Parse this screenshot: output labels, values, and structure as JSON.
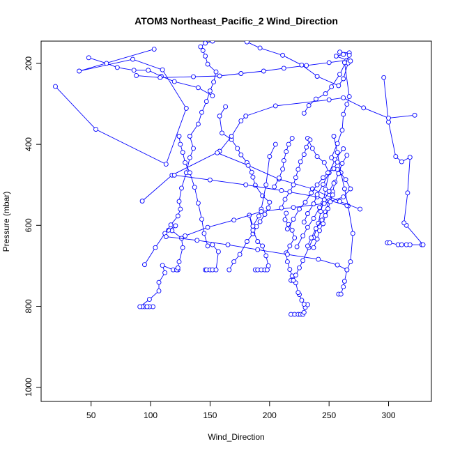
{
  "chart_data": {
    "type": "line",
    "title": "ATOM3 Northeast_Pacific_2 Wind_Direction",
    "xlabel": "Wind_Direction",
    "ylabel": "Pressure (mbar)",
    "xlim": [
      8,
      336
    ],
    "ylim": [
      1035,
      145
    ],
    "y_reversed": true,
    "x_ticks": [
      50,
      100,
      150,
      200,
      250,
      300
    ],
    "y_ticks": [
      200,
      400,
      600,
      800,
      1000
    ],
    "grid": false,
    "legend": "none",
    "marker": "open-circle",
    "color": "#0000ff",
    "series": [
      {
        "x": [
          102,
          95,
          99,
          97,
          93,
          91,
          99,
          107,
          107,
          112,
          110,
          119,
          122,
          123,
          122,
          123,
          124,
          127,
          126,
          118,
          121,
          115
        ],
        "y": [
          801,
          801,
          801,
          801,
          801,
          801,
          783,
          762,
          741,
          717,
          699,
          710,
          710,
          710,
          710,
          705,
          690,
          655,
          632,
          613,
          601,
          612
        ]
      },
      {
        "x": [
          95,
          104,
          112,
          117,
          123,
          125,
          124,
          126,
          130,
          133,
          136,
          133,
          140,
          143,
          147,
          150,
          153,
          155,
          148,
          146,
          144,
          142,
          146,
          152
        ],
        "y": [
          697,
          655,
          620,
          599,
          577,
          560,
          541,
          508,
          470,
          433,
          410,
          380,
          350,
          321,
          294,
          268,
          246,
          221,
          202,
          182,
          168,
          159,
          150,
          145
        ]
      },
      {
        "x": [
          146,
          147,
          150,
          152,
          155,
          157,
          152,
          148,
          145,
          143,
          140,
          137,
          133,
          129,
          127,
          125,
          124
        ],
        "y": [
          710,
          710,
          710,
          710,
          710,
          665,
          648,
          651,
          620,
          585,
          545,
          506,
          470,
          445,
          420,
          400,
          380
        ]
      },
      {
        "x": [
          166,
          170,
          175,
          181,
          186,
          189,
          192,
          196,
          199,
          200,
          194,
          188,
          186,
          185,
          181,
          176,
          173,
          168,
          160,
          158,
          163
        ],
        "y": [
          710,
          690,
          672,
          640,
          621,
          603,
          591,
          573,
          557,
          543,
          527,
          501,
          481,
          469,
          445,
          426,
          410,
          388,
          372,
          330,
          307
        ]
      },
      {
        "x": [
          188,
          190,
          193,
          196,
          198,
          199,
          197,
          194,
          190,
          186,
          183,
          186,
          191,
          193,
          197,
          200,
          205
        ],
        "y": [
          710,
          710,
          710,
          710,
          710,
          700,
          675,
          651,
          640,
          612,
          575,
          602,
          577,
          560,
          500,
          430,
          400
        ]
      },
      {
        "x": [
          218,
          221,
          224,
          226,
          228,
          229,
          230,
          232,
          229,
          227,
          225,
          224,
          222,
          219,
          217,
          215,
          214,
          217,
          221,
          219,
          216,
          213,
          214
        ],
        "y": [
          820,
          820,
          820,
          820,
          820,
          815,
          803,
          796,
          795,
          785,
          771,
          766,
          742,
          725,
          709,
          690,
          668,
          651,
          631,
          612,
          598,
          586,
          570
        ]
      },
      {
        "x": [
          218,
          220,
          222,
          225,
          228,
          233,
          237,
          241,
          243,
          245,
          247,
          250,
          246,
          240,
          236,
          232
        ],
        "y": [
          736,
          736,
          723,
          705,
          687,
          655,
          630,
          595,
          566,
          545,
          511,
          470,
          445,
          430,
          410,
          385
        ]
      },
      {
        "x": [
          258,
          260,
          262,
          263,
          265,
          268,
          270,
          266,
          263,
          260,
          257,
          254
        ],
        "y": [
          770,
          770,
          752,
          738,
          710,
          690,
          620,
          552,
          510,
          470,
          420,
          380
        ]
      },
      {
        "x": [
          299,
          301,
          308,
          311,
          315,
          318,
          328,
          329,
          315,
          313,
          316,
          318,
          311,
          306,
          300,
          296
        ],
        "y": [
          643,
          643,
          648,
          648,
          648,
          648,
          648,
          648,
          600,
          594,
          520,
          432,
          443,
          430,
          345,
          235
        ]
      },
      {
        "x": [
          20,
          54,
          113,
          130,
          110,
          85,
          40,
          103
        ],
        "y": [
          257,
          363,
          449,
          311,
          216,
          190,
          219,
          165
        ]
      },
      {
        "x": [
          48,
          63,
          72,
          86,
          98,
          109,
          120,
          140,
          152
        ],
        "y": [
          186,
          200,
          210,
          217,
          217,
          232,
          245,
          260,
          280
        ]
      },
      {
        "x": [
          93,
          118,
          158,
          168,
          176,
          180,
          205,
          250,
          262,
          279,
          300,
          322
        ],
        "y": [
          540,
          476,
          417,
          380,
          342,
          330,
          305,
          290,
          285,
          310,
          335,
          328
        ]
      },
      {
        "x": [
          113,
          139,
          165,
          190,
          215,
          241,
          257,
          265
        ],
        "y": [
          628,
          637,
          648,
          660,
          672,
          684,
          698,
          710
        ]
      },
      {
        "x": [
          120,
          150,
          180,
          210,
          240,
          265
        ],
        "y": [
          476,
          488,
          500,
          514,
          530,
          551
        ]
      },
      {
        "x": [
          156,
          182,
          208,
          236,
          259,
          276
        ],
        "y": [
          421,
          452,
          486,
          510,
          541,
          560
        ]
      },
      {
        "x": [
          129,
          148,
          170,
          193,
          220,
          246,
          262,
          268,
          264,
          257
        ],
        "y": [
          626,
          605,
          587,
          566,
          556,
          546,
          530,
          510,
          487,
          462
        ]
      },
      {
        "x": [
          88,
          108,
          136,
          158,
          176,
          195,
          212,
          231,
          250,
          265,
          256,
          262,
          267,
          259
        ],
        "y": [
          230,
          235,
          233,
          231,
          225,
          219,
          212,
          205,
          198,
          192,
          182,
          178,
          174,
          172
        ]
      },
      {
        "x": [
          181,
          192,
          211,
          227,
          240,
          258,
          262,
          266,
          268
        ],
        "y": [
          147,
          162,
          180,
          204,
          232,
          255,
          238,
          199,
          194
        ]
      },
      {
        "x": [
          229,
          233,
          239,
          247,
          252,
          259,
          267
        ],
        "y": [
          323,
          304,
          288,
          275,
          258,
          227,
          180
        ]
      },
      {
        "x": [
          252,
          257,
          261,
          262,
          265,
          267,
          263
        ],
        "y": [
          433,
          398,
          365,
          326,
          301,
          282,
          198
        ]
      },
      {
        "x": [
          229,
          232,
          237,
          240,
          245,
          250,
          255,
          262
        ],
        "y": [
          592,
          571,
          547,
          524,
          499,
          470,
          438,
          411
        ]
      },
      {
        "x": [
          204,
          208,
          211,
          212,
          214,
          216,
          219
        ],
        "y": [
          505,
          483,
          461,
          440,
          418,
          400,
          385
        ]
      },
      {
        "x": [
          232,
          235,
          239,
          244,
          247,
          250,
          253,
          255,
          258,
          261,
          265
        ],
        "y": [
          651,
          631,
          608,
          587,
          567,
          539,
          517,
          493,
          472,
          447,
          427
        ]
      },
      {
        "x": [
          215,
          220,
          225,
          230,
          235,
          240,
          245,
          249,
          254,
          257
        ],
        "y": [
          609,
          585,
          560,
          543,
          520,
          500,
          482,
          470,
          460,
          444
        ]
      },
      {
        "x": [
          237,
          240,
          242,
          245,
          247,
          249,
          251,
          253
        ],
        "y": [
          655,
          634,
          613,
          596,
          576,
          559,
          542,
          525
        ]
      },
      {
        "x": [
          210,
          213,
          217,
          220,
          222,
          224,
          226,
          229,
          231,
          234
        ],
        "y": [
          557,
          536,
          517,
          500,
          482,
          462,
          443,
          425,
          407,
          389
        ]
      },
      {
        "x": [
          223,
          228,
          232,
          237,
          242,
          246,
          250,
          254
        ],
        "y": [
          653,
          626,
          605,
          583,
          556,
          537,
          516,
          496
        ]
      }
    ]
  }
}
